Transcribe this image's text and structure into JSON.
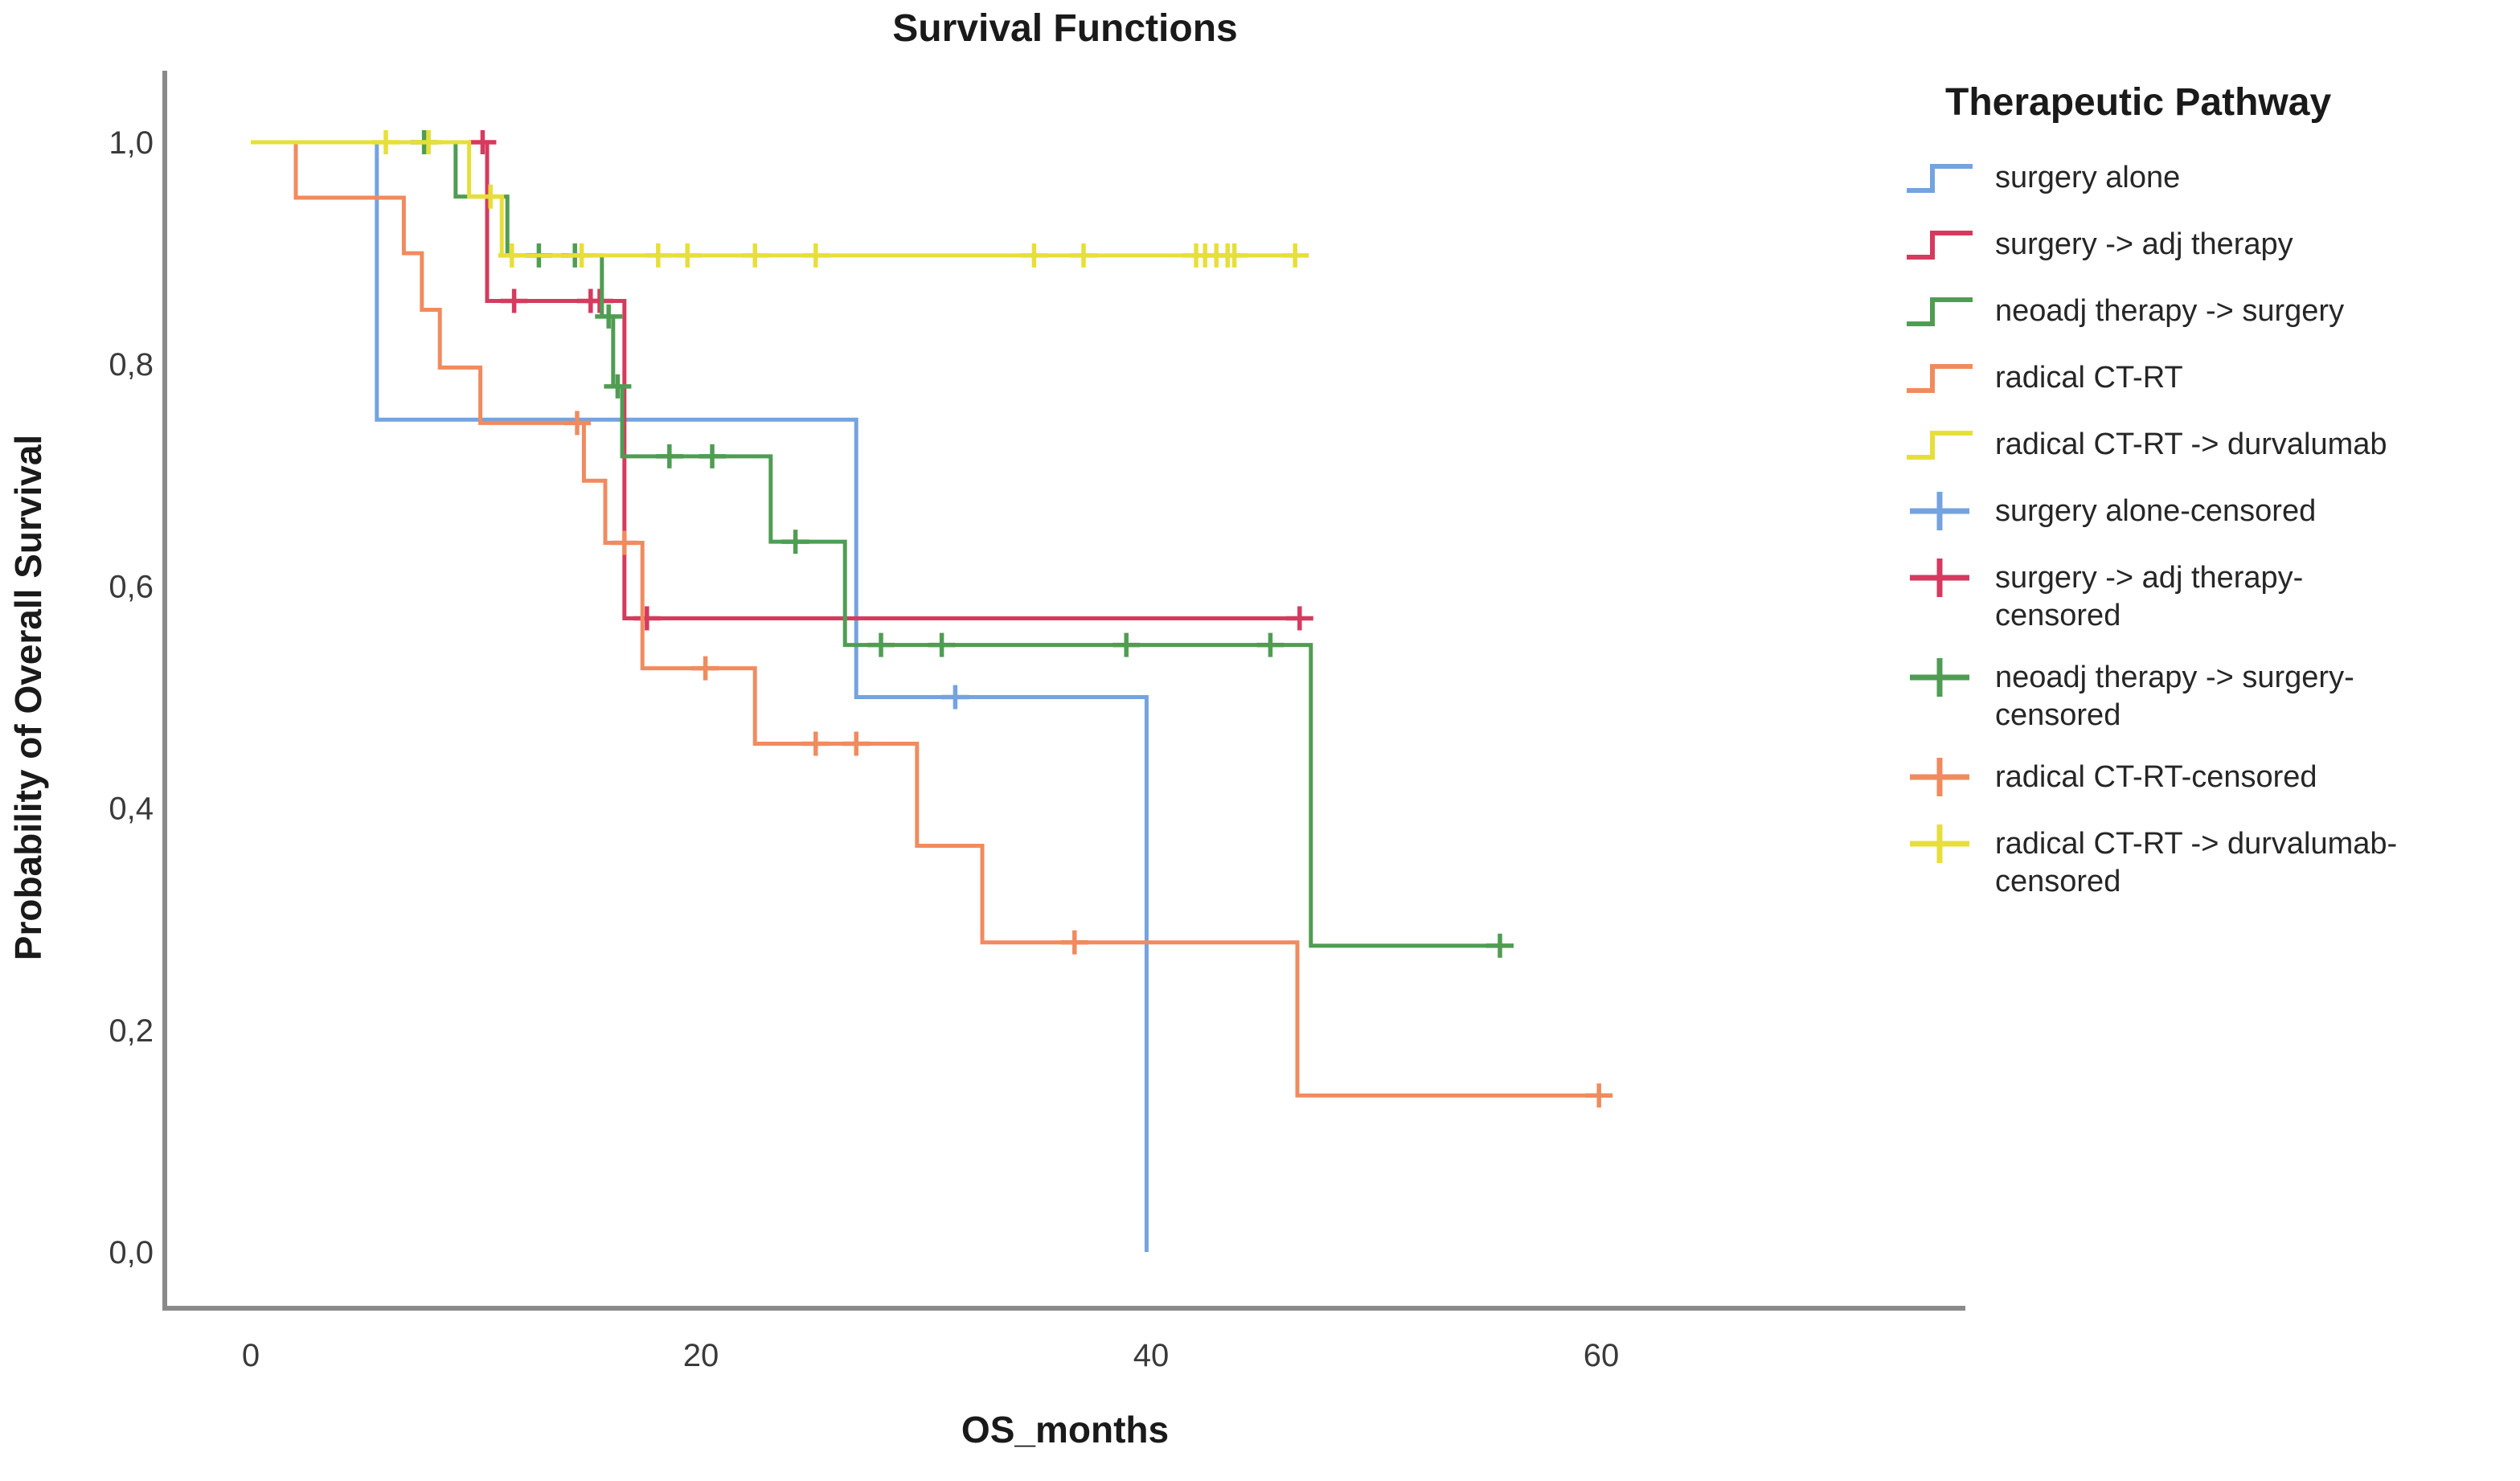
{
  "chart": {
    "title": "Survival Functions"
  },
  "x_axis": {
    "label": "OS_months",
    "tick_labels": [
      "0",
      "20",
      "40",
      "60"
    ],
    "tick_values": [
      0,
      20,
      40,
      60
    ]
  },
  "y_axis": {
    "label": "Probability of Overall Survival",
    "tick_labels": [
      "1,0",
      "0,8",
      "0,6",
      "0,4",
      "0,2",
      "0,0"
    ],
    "tick_values": [
      1.0,
      0.8,
      0.6,
      0.4,
      0.2,
      0.0
    ]
  },
  "legend": {
    "title": "Therapeutic Pathway",
    "items": [
      {
        "name": "surgery-alone",
        "label": "surgery alone",
        "glyph": "step",
        "series": 0
      },
      {
        "name": "surgery-adj-therapy",
        "label": "surgery -> adj therapy",
        "glyph": "step",
        "series": 1
      },
      {
        "name": "neoadj-therapy-surgery",
        "label": "neoadj therapy -> surgery",
        "glyph": "step",
        "series": 2
      },
      {
        "name": "radical-ct-rt",
        "label": "radical CT-RT",
        "glyph": "step",
        "series": 3
      },
      {
        "name": "radical-ct-rt-durvalumab",
        "label": "radical CT-RT -> durvalumab",
        "glyph": "step",
        "series": 4
      },
      {
        "name": "surgery-alone-censored",
        "label": "surgery alone-censored",
        "glyph": "plus",
        "series": 0
      },
      {
        "name": "surgery-adj-therapy-censored",
        "label": "surgery -> adj therapy-\ncensored",
        "glyph": "plus",
        "series": 1
      },
      {
        "name": "neoadj-therapy-surgery-censored",
        "label": "neoadj therapy -> surgery-\ncensored",
        "glyph": "plus",
        "series": 2
      },
      {
        "name": "radical-ct-rt-censored",
        "label": "radical CT-RT-censored",
        "glyph": "plus",
        "series": 3
      },
      {
        "name": "radical-ct-rt-durvalumab-censored",
        "label": "radical CT-RT -> durvalumab-\ncensored",
        "glyph": "plus",
        "series": 4
      }
    ]
  },
  "chart_data": {
    "type": "line",
    "subtype": "kaplan-meier-step",
    "title": "Survival Functions",
    "xlabel": "OS_months",
    "ylabel": "Probability of Overall Survival",
    "xlim": [
      0,
      76
    ],
    "ylim": [
      0.0,
      1.05
    ],
    "grid": false,
    "legend_position": "right",
    "series": [
      {
        "name": "surgery alone",
        "slug": "surgery-alone",
        "color": "#74A3DF",
        "steps": [
          [
            0,
            1.0
          ],
          [
            5.6,
            0.75
          ],
          [
            26.9,
            0.5
          ],
          [
            39.8,
            0.0
          ]
        ],
        "end": 39.8,
        "censors": [
          [
            31.3,
            0.5
          ]
        ]
      },
      {
        "name": "surgery -> adj therapy",
        "slug": "surgery-adj-therapy",
        "color": "#D63A5E",
        "steps": [
          [
            0,
            1.0
          ],
          [
            10.5,
            0.857
          ],
          [
            16.6,
            0.571
          ]
        ],
        "end": 46.6,
        "censors": [
          [
            10.3,
            1.0
          ],
          [
            11.7,
            0.857
          ],
          [
            15.1,
            0.857
          ],
          [
            15.5,
            0.857
          ],
          [
            17.6,
            0.571
          ],
          [
            46.6,
            0.571
          ]
        ]
      },
      {
        "name": "neoadj therapy -> surgery",
        "slug": "neoadj-therapy-surgery",
        "color": "#4F9D53",
        "steps": [
          [
            0,
            1.0
          ],
          [
            9.1,
            0.951
          ],
          [
            11.4,
            0.898
          ],
          [
            15.6,
            0.843
          ],
          [
            16.1,
            0.78
          ],
          [
            16.5,
            0.717
          ],
          [
            23.1,
            0.64
          ],
          [
            26.4,
            0.547
          ],
          [
            47.1,
            0.276
          ]
        ],
        "end": 55.7,
        "censors": [
          [
            7.7,
            1.0
          ],
          [
            12.8,
            0.898
          ],
          [
            14.4,
            0.898
          ],
          [
            15.9,
            0.843
          ],
          [
            16.3,
            0.78
          ],
          [
            18.6,
            0.717
          ],
          [
            20.5,
            0.717
          ],
          [
            24.2,
            0.64
          ],
          [
            28.0,
            0.547
          ],
          [
            30.7,
            0.547
          ],
          [
            38.9,
            0.547
          ],
          [
            45.3,
            0.547
          ],
          [
            55.5,
            0.276
          ]
        ]
      },
      {
        "name": "radical CT-RT",
        "slug": "radical-ct-rt",
        "color": "#F08B5F",
        "steps": [
          [
            0,
            1.0
          ],
          [
            2.0,
            0.95
          ],
          [
            6.8,
            0.9
          ],
          [
            7.6,
            0.849
          ],
          [
            8.4,
            0.797
          ],
          [
            10.2,
            0.747
          ],
          [
            14.8,
            0.695
          ],
          [
            15.75,
            0.639
          ],
          [
            17.4,
            0.526
          ],
          [
            22.4,
            0.458
          ],
          [
            29.6,
            0.366
          ],
          [
            32.5,
            0.279
          ],
          [
            46.5,
            0.141
          ]
        ],
        "end": 60.0,
        "censors": [
          [
            14.5,
            0.747
          ],
          [
            16.6,
            0.639
          ],
          [
            20.2,
            0.526
          ],
          [
            25.1,
            0.458
          ],
          [
            26.9,
            0.458
          ],
          [
            36.6,
            0.279
          ],
          [
            59.9,
            0.141
          ]
        ]
      },
      {
        "name": "radical CT-RT -> durvalumab",
        "slug": "radical-ct-rt-durvalumab",
        "color": "#E7DF39",
        "steps": [
          [
            0,
            1.0
          ],
          [
            9.7,
            0.951
          ],
          [
            11.15,
            0.898
          ]
        ],
        "end": 46.4,
        "censors": [
          [
            6.0,
            1.0
          ],
          [
            7.9,
            1.0
          ],
          [
            10.65,
            0.951
          ],
          [
            11.6,
            0.898
          ],
          [
            14.7,
            0.898
          ],
          [
            18.1,
            0.898
          ],
          [
            19.4,
            0.898
          ],
          [
            22.4,
            0.898
          ],
          [
            25.1,
            0.898
          ],
          [
            34.8,
            0.898
          ],
          [
            37.0,
            0.898
          ],
          [
            42.0,
            0.898
          ],
          [
            42.4,
            0.898
          ],
          [
            42.9,
            0.898
          ],
          [
            43.4,
            0.898
          ],
          [
            43.7,
            0.898
          ],
          [
            46.4,
            0.898
          ]
        ]
      }
    ]
  }
}
